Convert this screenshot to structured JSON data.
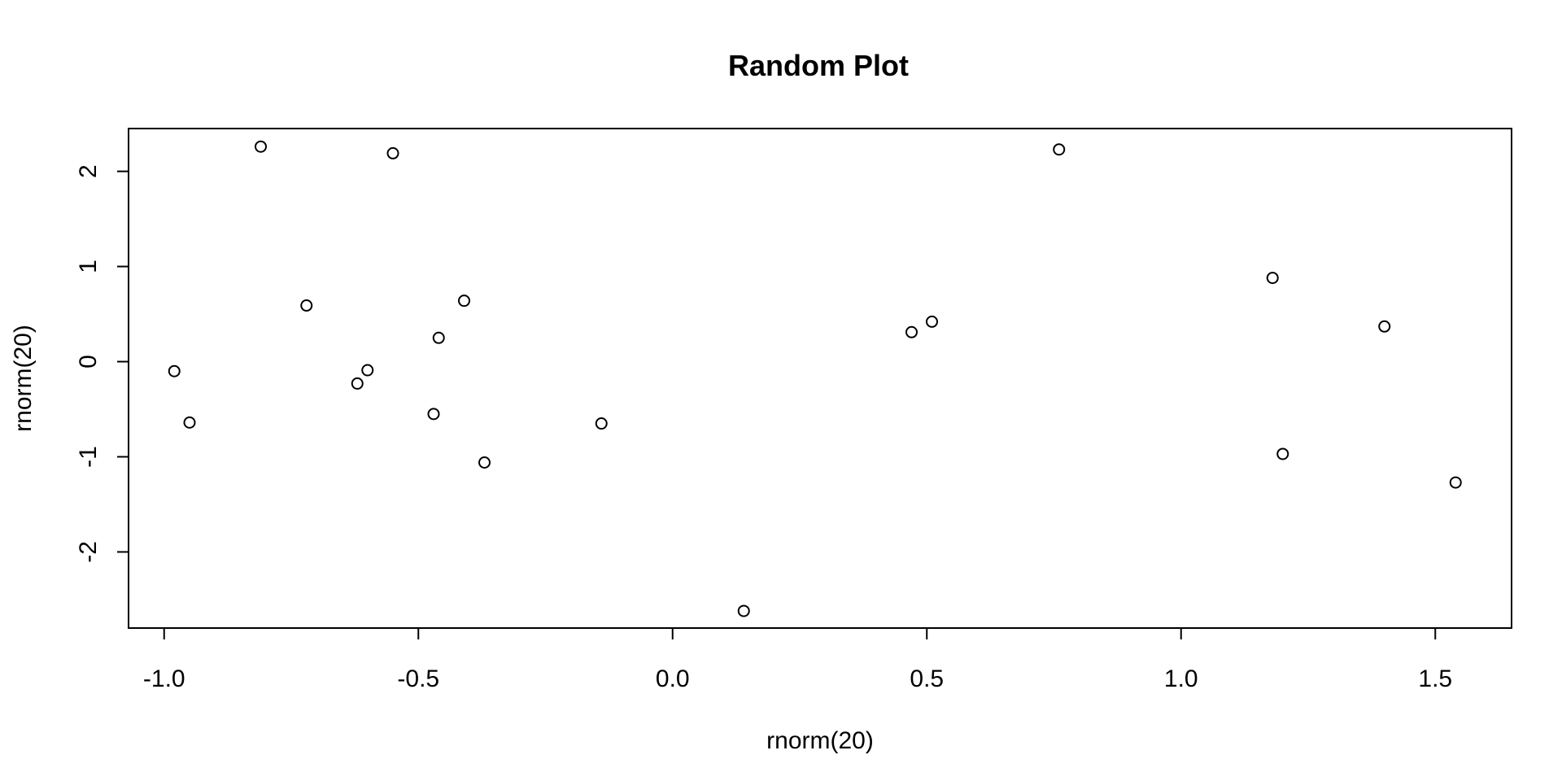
{
  "chart_data": {
    "type": "scatter",
    "title": "Random Plot",
    "xlabel": "rnorm(20)",
    "ylabel": "rnorm(20)",
    "x_ticks": [
      -1.0,
      -0.5,
      0.0,
      0.5,
      1.0,
      1.5
    ],
    "x_tick_labels": [
      "-1.0",
      "-0.5",
      "0.0",
      "0.5",
      "1.0",
      "1.5"
    ],
    "y_ticks": [
      -2,
      -1,
      0,
      1,
      2
    ],
    "y_tick_labels": [
      "-2",
      "-1",
      "0",
      "1",
      "2"
    ],
    "xlim": [
      -1.07,
      1.65
    ],
    "ylim": [
      -2.8,
      2.45
    ],
    "marker": "open-circle",
    "color": "#000000",
    "grid": false,
    "points": [
      {
        "x": -0.98,
        "y": -0.1
      },
      {
        "x": -0.95,
        "y": -0.64
      },
      {
        "x": -0.81,
        "y": 2.26
      },
      {
        "x": -0.72,
        "y": 0.59
      },
      {
        "x": -0.62,
        "y": -0.23
      },
      {
        "x": -0.6,
        "y": -0.09
      },
      {
        "x": -0.55,
        "y": 2.19
      },
      {
        "x": -0.47,
        "y": -0.55
      },
      {
        "x": -0.46,
        "y": 0.25
      },
      {
        "x": -0.41,
        "y": 0.64
      },
      {
        "x": -0.37,
        "y": -1.06
      },
      {
        "x": -0.14,
        "y": -0.65
      },
      {
        "x": 0.14,
        "y": -2.62
      },
      {
        "x": 0.47,
        "y": 0.31
      },
      {
        "x": 0.51,
        "y": 0.42
      },
      {
        "x": 0.76,
        "y": 2.23
      },
      {
        "x": 1.18,
        "y": 0.88
      },
      {
        "x": 1.2,
        "y": -0.97
      },
      {
        "x": 1.4,
        "y": 0.37
      },
      {
        "x": 1.54,
        "y": -1.27
      }
    ]
  }
}
